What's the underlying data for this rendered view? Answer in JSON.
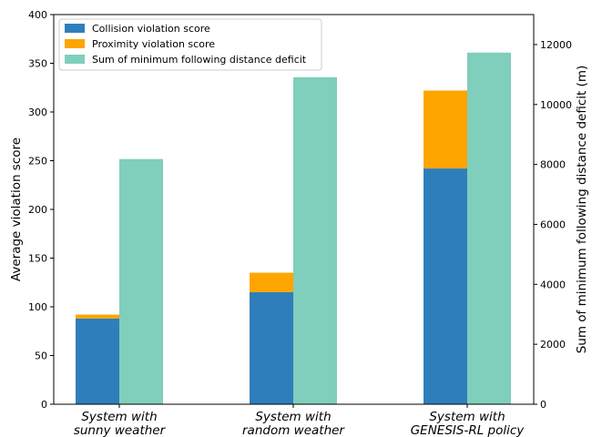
{
  "chart_data": {
    "type": "bar",
    "stacked_left_axis": true,
    "categories": [
      [
        "System with",
        "sunny weather"
      ],
      [
        "System with",
        "random weather"
      ],
      [
        "System with",
        "GENESIS-RL policy"
      ]
    ],
    "series": [
      {
        "name": "Collision violation score",
        "axis": "left",
        "group": "violation",
        "color": "#2e7ebc",
        "values": [
          88,
          115,
          242
        ]
      },
      {
        "name": "Proximity violation score",
        "axis": "left",
        "group": "violation",
        "color": "#ffa500",
        "values": [
          4,
          20,
          80
        ]
      },
      {
        "name": "Sum of minimum following distance deficit",
        "axis": "right",
        "group": "deficit",
        "color": "#80cebc",
        "values": [
          8180,
          10910,
          11730
        ]
      }
    ],
    "ylabel": "Average violation score",
    "ylabel_right": "Sum of minimum following distance deficit (m)",
    "ylim": [
      0,
      400
    ],
    "ylim_right": [
      0,
      13000
    ],
    "yticks": [
      "0",
      "50",
      "100",
      "150",
      "200",
      "250",
      "300",
      "350",
      "400"
    ],
    "yticks_right": [
      "0",
      "2000",
      "4000",
      "6000",
      "8000",
      "10000",
      "12000"
    ],
    "legend_position": "top-left",
    "grid": false
  }
}
